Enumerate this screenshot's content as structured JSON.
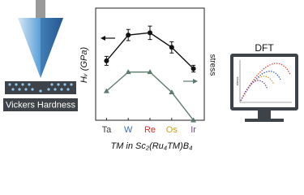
{
  "chart_data": {
    "type": "line",
    "categories": [
      "Ta",
      "W",
      "Re",
      "Os",
      "Ir"
    ],
    "category_colors": [
      "#3c3c3c",
      "#3a6fc4",
      "#d0332b",
      "#c9a227",
      "#7a3f9a"
    ],
    "x_label": "TM in Sc₂(Ru₄TM)B₄",
    "y_label": "Hᵥ (GPa)",
    "y2_label": "stress",
    "ylim": [
      0,
      10
    ],
    "y2lim": [
      0,
      10
    ],
    "series": [
      {
        "color": "#111111",
        "marker": "circle",
        "values": [
          5.3,
          7.6,
          7.8,
          6.5,
          4.6
        ],
        "errors": [
          0.4,
          0.5,
          0.6,
          0.5,
          0.3
        ]
      },
      {
        "color": "#5d7b6c",
        "marker": "triangle",
        "axis": "y2",
        "values": [
          2.6,
          4.3,
          4.3,
          2.5,
          0
        ]
      }
    ]
  },
  "illustration": {
    "indenter_label": "Vickers Hardness",
    "monitor_title": "DFT",
    "monitor_axis": "stress"
  }
}
